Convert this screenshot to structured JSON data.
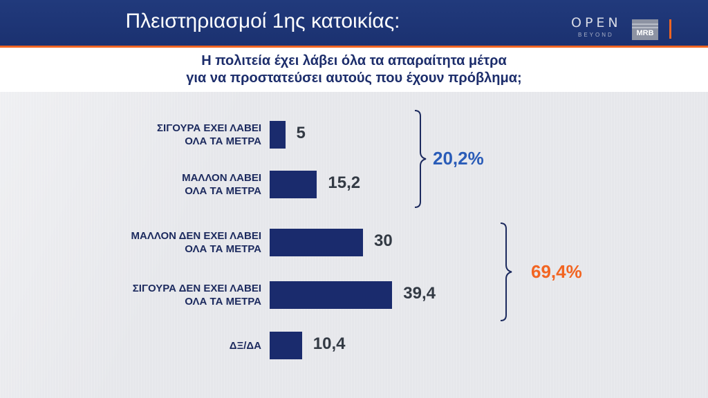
{
  "header": {
    "title": "Πλειστηριασμοί 1ης κατοικίας:",
    "logo_open": "OPEN",
    "logo_open_sub": "BEYOND",
    "logo_mrb": "MRB"
  },
  "question": {
    "line1": "Η πολιτεία έχει λάβει όλα τα απαραίτητα μέτρα",
    "line2": "για να προστατεύσει αυτούς που έχουν πρόβλημα;"
  },
  "chart_data": {
    "type": "bar",
    "orientation": "horizontal",
    "categories": [
      [
        "ΣΙΓΟΥΡΑ ΕΧΕΙ ΛΑΒΕΙ",
        "ΟΛΑ ΤΑ ΜΕΤΡΑ"
      ],
      [
        "ΜΑΛΛΟΝ ΛΑΒΕΙ",
        "ΟΛΑ ΤΑ ΜΕΤΡΑ"
      ],
      [
        "ΜΑΛΛΟΝ ΔΕΝ ΕΧΕΙ ΛΑΒΕΙ",
        "ΟΛΑ ΤΑ ΜΕΤΡΑ"
      ],
      [
        "ΣΙΓΟΥΡΑ ΔΕΝ ΕΧΕΙ ΛΑΒΕΙ",
        "ΟΛΑ ΤΑ ΜΕΤΡΑ"
      ],
      [
        "ΔΞ/ΔΑ"
      ]
    ],
    "values": [
      5,
      15.2,
      30,
      39.4,
      10.4
    ],
    "value_labels": [
      "5",
      "15,2",
      "30",
      "39,4",
      "10,4"
    ],
    "groups": [
      {
        "label": "20,2%",
        "color": "#2a5cb8",
        "members": [
          0,
          1
        ]
      },
      {
        "label": "69,4%",
        "color": "#f26522",
        "members": [
          2,
          3
        ]
      }
    ],
    "bar_color": "#1a2b6d"
  }
}
